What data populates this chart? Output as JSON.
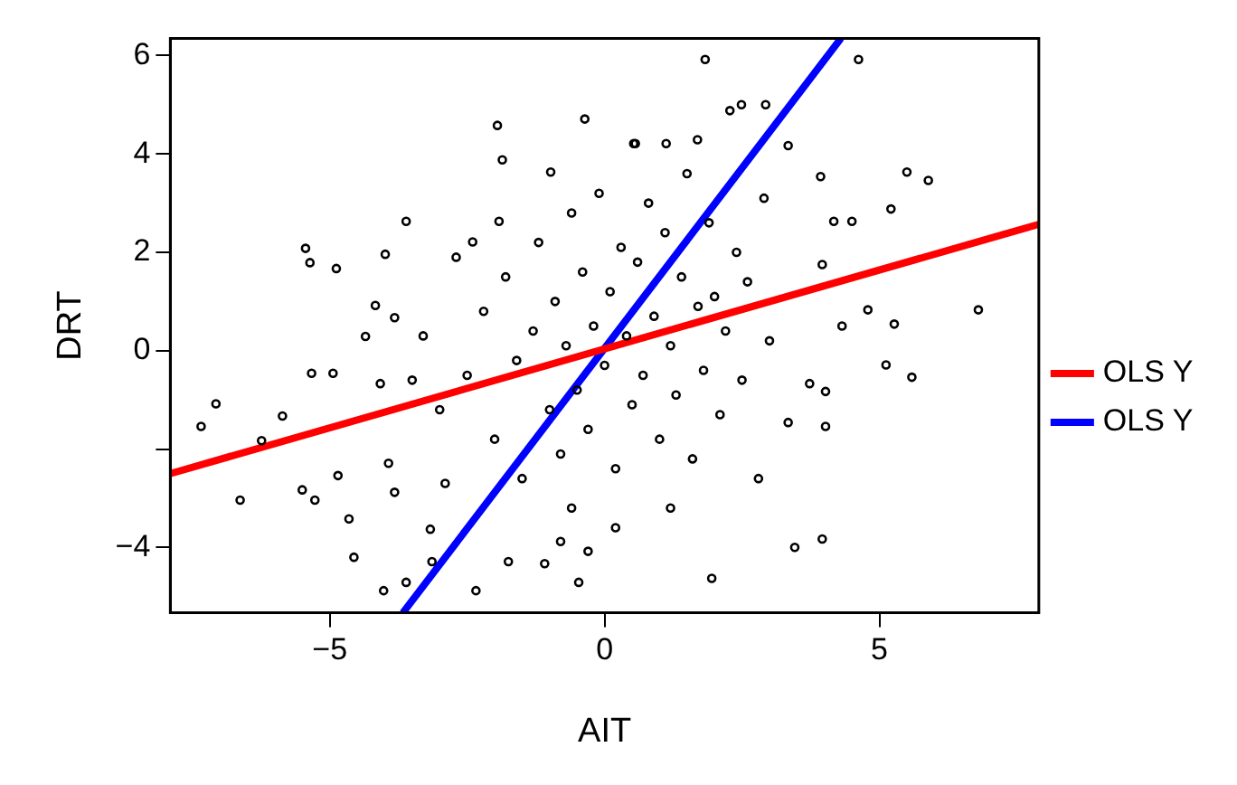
{
  "chart_data": {
    "type": "scatter",
    "xlabel": "AIT",
    "ylabel": "DRT",
    "xlim": [
      -7.9,
      7.9
    ],
    "ylim": [
      -5.33,
      6.35
    ],
    "xticks": [
      -5,
      0,
      5
    ],
    "yticks": [
      -4,
      {
        "value": -2,
        "label": null
      },
      0,
      2,
      4,
      6
    ],
    "grid": false,
    "legend": "right",
    "series": [
      {
        "marker": "circle",
        "color": "#000000",
        "x": [
          -7.34,
          -7.07,
          -6.63,
          -6.24,
          -5.86,
          -5.44,
          -5.36,
          -5.33,
          -5.5,
          -5.27,
          -4.88,
          -4.94,
          -4.85,
          -4.56,
          -4.65,
          -4.17,
          -3.99,
          -4.02,
          -3.61,
          -3.61,
          -3.82,
          -4.35,
          -4.08,
          -3.93,
          -3.82,
          -3.17,
          -3.14,
          -2.4,
          -2.34,
          -1.95,
          -1.86,
          -1.92,
          -1.75,
          -1.09,
          -0.98,
          -0.36,
          -0.47,
          -0.3,
          0.53,
          -0.8,
          1.83,
          4.62,
          2.28,
          2.49,
          2.93,
          0.56,
          1.12,
          1.69,
          3.34,
          5.5,
          5.89,
          3.93,
          5.21,
          4.17,
          4.5,
          4.79,
          5.27,
          5.12,
          5.59,
          4.02,
          3.34,
          3.73,
          4.32,
          3.96,
          3.96,
          3.46,
          1.95,
          4.02,
          6.8,
          -2.5,
          -2.2,
          -2,
          -1.8,
          -1.6,
          -1.5,
          -1.3,
          -1.2,
          -1,
          -0.9,
          -0.8,
          -0.7,
          -0.6,
          -0.5,
          -0.4,
          -0.3,
          -0.2,
          -0.1,
          0,
          0.1,
          0.2,
          0.3,
          0.4,
          0.5,
          0.6,
          0.7,
          0.8,
          0.9,
          1,
          1.1,
          1.2,
          1.3,
          1.4,
          1.5,
          1.6,
          1.7,
          1.8,
          1.9,
          2,
          2.1,
          2.2,
          2.4,
          2.5,
          2.6,
          2.8,
          2.9,
          3,
          -2.7,
          -3,
          -3.3,
          -2.9,
          -3.5,
          0.2,
          -0.6,
          1.2
        ],
        "values": [
          -1.54,
          -1.08,
          -3.04,
          -1.83,
          -1.33,
          2.08,
          1.79,
          -0.46,
          -2.83,
          -3.04,
          1.67,
          -0.46,
          -2.54,
          -4.2,
          -3.42,
          0.92,
          1.96,
          -4.88,
          2.63,
          -4.71,
          0.67,
          0.29,
          -0.67,
          -2.29,
          -2.88,
          -3.63,
          -4.29,
          2.21,
          -4.88,
          4.58,
          3.88,
          2.63,
          -4.29,
          -4.33,
          3.63,
          4.71,
          -4.71,
          -4.08,
          4.21,
          -3.88,
          5.92,
          5.92,
          4.88,
          5.0,
          5.0,
          4.21,
          4.21,
          4.29,
          4.17,
          3.63,
          3.46,
          3.54,
          2.88,
          2.63,
          2.63,
          0.83,
          0.54,
          -0.29,
          -0.54,
          -1.54,
          -1.46,
          -0.67,
          0.5,
          1.75,
          -3.83,
          -4.0,
          -4.63,
          -0.83,
          0.83,
          -0.5,
          0.8,
          -1.8,
          1.5,
          -0.2,
          -2.6,
          0.4,
          2.2,
          -1.2,
          1,
          -2.1,
          0.1,
          2.8,
          -0.8,
          1.6,
          -1.6,
          0.5,
          3.2,
          -0.3,
          1.2,
          -2.4,
          2.1,
          0.3,
          -1.1,
          1.8,
          -0.5,
          3,
          0.7,
          -1.8,
          2.4,
          0.1,
          -0.9,
          1.5,
          3.6,
          -2.2,
          0.9,
          -0.4,
          2.6,
          1.1,
          -1.3,
          0.4,
          2,
          -0.6,
          1.4,
          -2.6,
          3.1,
          0.2,
          1.9,
          -1.2,
          0.3,
          -2.7,
          -0.6,
          -3.6,
          -3.2,
          -3.2
        ]
      },
      {
        "type": "line",
        "name": "OLS Y",
        "color": "#ff0000",
        "x": [
          -7.9,
          7.9
        ],
        "values": [
          -2.5,
          2.57
        ]
      },
      {
        "type": "line",
        "name": "OLS Y",
        "color": "#0000ff",
        "x": [
          -3.67,
          4.3
        ],
        "values": [
          -5.33,
          6.35
        ]
      }
    ]
  }
}
